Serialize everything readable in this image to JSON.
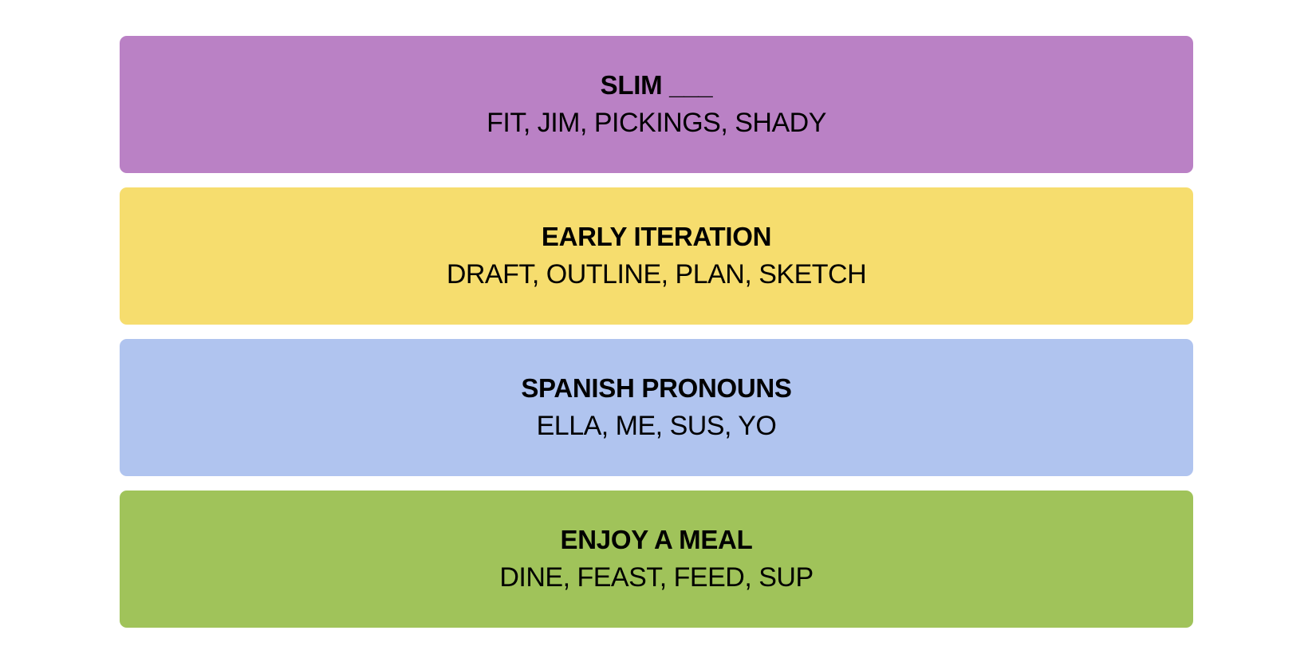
{
  "groups": [
    {
      "title": "SLIM ___",
      "members": "FIT, JIM, PICKINGS, SHADY"
    },
    {
      "title": "EARLY ITERATION",
      "members": "DRAFT, OUTLINE, PLAN, SKETCH"
    },
    {
      "title": "SPANISH PRONOUNS",
      "members": "ELLA, ME, SUS, YO"
    },
    {
      "title": "ENJOY A MEAL",
      "members": "DINE, FEAST, FEED, SUP"
    }
  ]
}
